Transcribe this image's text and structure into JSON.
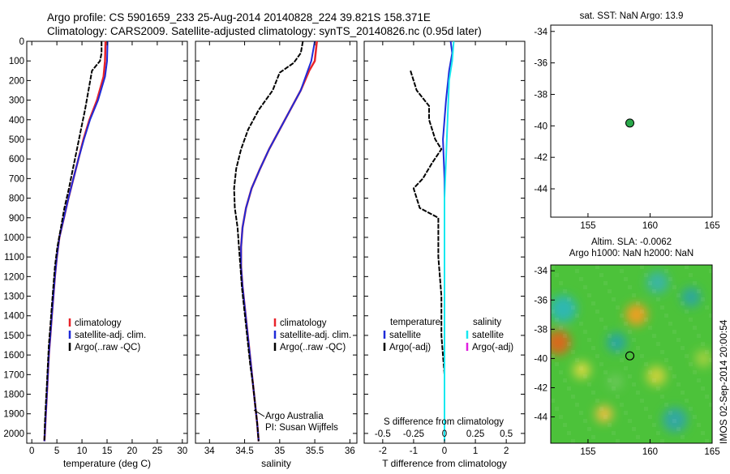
{
  "header": {
    "line1": "Argo profile: CS 5901659_233 25-Aug-2014 20140828_224 39.821S 158.371E",
    "line2": "Climatology: CARS2009. Satellite-adjusted climatology: synTS_20140826.nc (0.95d later)"
  },
  "side_label": "IMOS 02-Sep-2014 20:00:54",
  "colors": {
    "climatology": "#e8232a",
    "satellite": "#1f2bd8",
    "argo": "#000000",
    "sat_salinity": "#18e8f0",
    "argo_salinity_adj": "#e020e0"
  },
  "chart_data": [
    {
      "id": "temperature",
      "type": "line",
      "xlabel": "temperature (deg C)",
      "ylabel": "",
      "xlim": [
        -1,
        31
      ],
      "ylim": [
        2050,
        0
      ],
      "xticks": [
        "0",
        "5",
        "10",
        "15",
        "20",
        "25",
        "30"
      ],
      "xtick_values": [
        0,
        5,
        10,
        15,
        20,
        25,
        30
      ],
      "yticks": [
        "0",
        "100",
        "200",
        "300",
        "400",
        "500",
        "600",
        "700",
        "800",
        "900",
        "1000",
        "1100",
        "1200",
        "1300",
        "1400",
        "1500",
        "1600",
        "1700",
        "1800",
        "1900",
        "2000"
      ],
      "ytick_values": [
        0,
        100,
        200,
        300,
        400,
        500,
        600,
        700,
        800,
        900,
        1000,
        1100,
        1200,
        1300,
        1400,
        1500,
        1600,
        1700,
        1800,
        1900,
        2000
      ],
      "legend": [
        "climatology",
        "satellite-adj. clim.",
        "Argo(..raw -QC)"
      ],
      "series": [
        {
          "name": "climatology",
          "color": "red",
          "width": 2.5,
          "points": [
            [
              14.7,
              0
            ],
            [
              14.6,
              100
            ],
            [
              14.3,
              180
            ],
            [
              13.0,
              300
            ],
            [
              11.5,
              400
            ],
            [
              10.3,
              500
            ],
            [
              9.3,
              600
            ],
            [
              8.3,
              700
            ],
            [
              7.3,
              800
            ],
            [
              6.4,
              900
            ],
            [
              5.5,
              1000
            ],
            [
              5.0,
              1100
            ],
            [
              4.6,
              1200
            ],
            [
              4.3,
              1300
            ],
            [
              4.0,
              1400
            ],
            [
              3.7,
              1500
            ],
            [
              3.4,
              1600
            ],
            [
              3.2,
              1700
            ],
            [
              3.0,
              1800
            ],
            [
              2.8,
              1900
            ],
            [
              2.6,
              2000
            ],
            [
              2.5,
              2040
            ]
          ]
        },
        {
          "name": "satellite-adj. clim.",
          "color": "blue",
          "width": 2,
          "points": [
            [
              15.1,
              0
            ],
            [
              15.0,
              100
            ],
            [
              14.6,
              180
            ],
            [
              13.2,
              300
            ],
            [
              11.6,
              400
            ],
            [
              10.4,
              500
            ],
            [
              9.3,
              600
            ],
            [
              8.3,
              700
            ],
            [
              7.3,
              800
            ],
            [
              6.4,
              900
            ],
            [
              5.5,
              1000
            ],
            [
              5.0,
              1100
            ],
            [
              4.6,
              1200
            ],
            [
              4.3,
              1300
            ],
            [
              4.0,
              1400
            ],
            [
              3.7,
              1500
            ],
            [
              3.4,
              1600
            ],
            [
              3.2,
              1700
            ],
            [
              3.0,
              1800
            ],
            [
              2.8,
              1900
            ],
            [
              2.6,
              2000
            ],
            [
              2.5,
              2040
            ]
          ]
        },
        {
          "name": "Argo(..raw -QC)",
          "color": "black",
          "width": 2,
          "points": [
            [
              13.9,
              0
            ],
            [
              13.9,
              60
            ],
            [
              13.6,
              100
            ],
            [
              12.0,
              150
            ],
            [
              11.3,
              250
            ],
            [
              10.6,
              350
            ],
            [
              9.8,
              450
            ],
            [
              9.0,
              550
            ],
            [
              8.2,
              650
            ],
            [
              7.4,
              750
            ],
            [
              6.5,
              850
            ],
            [
              5.8,
              950
            ],
            [
              5.1,
              1050
            ],
            [
              4.6,
              1150
            ],
            [
              4.3,
              1250
            ],
            [
              4.0,
              1350
            ],
            [
              3.7,
              1450
            ],
            [
              3.4,
              1550
            ],
            [
              3.2,
              1650
            ],
            [
              3.0,
              1750
            ],
            [
              2.8,
              1850
            ],
            [
              2.6,
              1950
            ],
            [
              2.5,
              2040
            ]
          ]
        }
      ]
    },
    {
      "id": "salinity",
      "type": "line",
      "xlabel": "salinity",
      "xlim": [
        33.8,
        36.1
      ],
      "ylim": [
        2050,
        0
      ],
      "xticks": [
        "34",
        "34.5",
        "35",
        "35.5",
        "36"
      ],
      "xtick_values": [
        34,
        34.5,
        35,
        35.5,
        36
      ],
      "legend": [
        "climatology",
        "satellite-adj. clim.",
        "Argo(..raw -QC)"
      ],
      "annotation_lines": [
        "Argo Australia",
        "PI: Susan Wijffels"
      ],
      "series": [
        {
          "name": "climatology",
          "color": "red",
          "width": 2.5,
          "points": [
            [
              35.53,
              0
            ],
            [
              35.5,
              100
            ],
            [
              35.42,
              150
            ],
            [
              35.3,
              250
            ],
            [
              35.15,
              350
            ],
            [
              35.0,
              450
            ],
            [
              34.85,
              550
            ],
            [
              34.72,
              650
            ],
            [
              34.6,
              750
            ],
            [
              34.52,
              850
            ],
            [
              34.47,
              950
            ],
            [
              34.45,
              1050
            ],
            [
              34.45,
              1150
            ],
            [
              34.47,
              1250
            ],
            [
              34.5,
              1350
            ],
            [
              34.53,
              1450
            ],
            [
              34.56,
              1550
            ],
            [
              34.59,
              1650
            ],
            [
              34.62,
              1750
            ],
            [
              34.65,
              1850
            ],
            [
              34.68,
              1950
            ],
            [
              34.7,
              2040
            ]
          ]
        },
        {
          "name": "satellite-adj. clim.",
          "color": "blue",
          "width": 2,
          "points": [
            [
              35.5,
              0
            ],
            [
              35.45,
              100
            ],
            [
              35.4,
              150
            ],
            [
              35.3,
              250
            ],
            [
              35.15,
              350
            ],
            [
              35.0,
              450
            ],
            [
              34.85,
              550
            ],
            [
              34.72,
              650
            ],
            [
              34.6,
              750
            ],
            [
              34.52,
              850
            ],
            [
              34.47,
              950
            ],
            [
              34.45,
              1050
            ],
            [
              34.45,
              1150
            ],
            [
              34.47,
              1250
            ],
            [
              34.5,
              1350
            ],
            [
              34.53,
              1450
            ],
            [
              34.56,
              1550
            ],
            [
              34.59,
              1650
            ],
            [
              34.62,
              1750
            ],
            [
              34.65,
              1850
            ],
            [
              34.68,
              1950
            ],
            [
              34.7,
              2040
            ]
          ]
        },
        {
          "name": "Argo(..raw -QC)",
          "color": "black",
          "width": 2,
          "points": [
            [
              35.33,
              0
            ],
            [
              35.3,
              60
            ],
            [
              35.2,
              110
            ],
            [
              35.0,
              160
            ],
            [
              34.9,
              250
            ],
            [
              34.7,
              350
            ],
            [
              34.55,
              450
            ],
            [
              34.45,
              550
            ],
            [
              34.38,
              650
            ],
            [
              34.35,
              750
            ],
            [
              34.36,
              850
            ],
            [
              34.4,
              950
            ],
            [
              34.42,
              1050
            ],
            [
              34.44,
              1150
            ],
            [
              34.46,
              1250
            ],
            [
              34.49,
              1350
            ],
            [
              34.52,
              1450
            ],
            [
              34.55,
              1550
            ],
            [
              34.58,
              1650
            ],
            [
              34.62,
              1750
            ],
            [
              34.65,
              1850
            ],
            [
              34.68,
              1950
            ],
            [
              34.7,
              2040
            ]
          ]
        }
      ]
    },
    {
      "id": "difference",
      "type": "line",
      "xlabel": "T difference from climatology",
      "toplabel": "S difference from climatology",
      "xlim": [
        -2.6,
        2.6
      ],
      "ylim": [
        2050,
        0
      ],
      "xticks": [
        "-2",
        "-1",
        "0",
        "1",
        "2"
      ],
      "xtick_values": [
        -2,
        -1,
        0,
        1,
        2
      ],
      "s_xticks": [
        "-0.5",
        "-0.25",
        "0",
        "0.25",
        "0.5"
      ],
      "s_xtick_values": [
        -0.5,
        -0.25,
        0,
        0.25,
        0.5
      ],
      "legend_left_title": "temperature",
      "legend_right_title": "salinity",
      "legend_left": [
        "satellite",
        "Argo(-adj)"
      ],
      "legend_right": [
        "satellite",
        "Argo(-adj)"
      ],
      "series": [
        {
          "name": "T satellite",
          "color": "blue",
          "width": 2,
          "points": [
            [
              0.2,
              0
            ],
            [
              0.25,
              60
            ],
            [
              0.15,
              150
            ],
            [
              0.05,
              300
            ],
            [
              -0.05,
              500
            ],
            [
              0,
              700
            ],
            [
              0,
              900
            ],
            [
              0,
              1100
            ],
            [
              0,
              1300
            ],
            [
              0,
              1500
            ],
            [
              0,
              1700
            ],
            [
              0,
              1900
            ],
            [
              0,
              2040
            ]
          ]
        },
        {
          "name": "T Argo(-adj)",
          "color": "black",
          "width": 2,
          "points": [
            [
              -1.1,
              150
            ],
            [
              -0.9,
              250
            ],
            [
              -0.5,
              330
            ],
            [
              -0.5,
              400
            ],
            [
              -0.3,
              500
            ],
            [
              -0.1,
              550
            ],
            [
              -0.4,
              620
            ],
            [
              -0.7,
              700
            ],
            [
              -1.0,
              750
            ],
            [
              -0.8,
              850
            ],
            [
              -0.2,
              900
            ],
            [
              -0.2,
              1100
            ],
            [
              -0.1,
              1300
            ],
            [
              -0.1,
              1500
            ],
            [
              0,
              1700
            ],
            [
              0,
              1900
            ],
            [
              0,
              2040
            ]
          ]
        },
        {
          "name": "S satellite",
          "color": "cyan",
          "width": 2,
          "points": [
            [
              0.3,
              0
            ],
            [
              0.25,
              100
            ],
            [
              0.15,
              200
            ],
            [
              0.1,
              400
            ],
            [
              0.05,
              600
            ],
            [
              0,
              800
            ],
            [
              0,
              1000
            ],
            [
              0,
              1200
            ],
            [
              0,
              1400
            ],
            [
              0,
              1600
            ],
            [
              0,
              1800
            ],
            [
              0,
              2040
            ]
          ]
        }
      ]
    },
    {
      "id": "sst_map",
      "type": "scatter",
      "title": "sat. SST: NaN Argo: 13.9",
      "xlim": [
        152,
        165
      ],
      "ylim": [
        -45.8,
        -33.6
      ],
      "xticks": [
        "155",
        "160",
        "165"
      ],
      "xtick_values": [
        155,
        160,
        165
      ],
      "yticks": [
        "-34",
        "-36",
        "-38",
        "-40",
        "-42",
        "-44"
      ],
      "ytick_values": [
        -34,
        -36,
        -38,
        -40,
        -42,
        -44
      ],
      "points": [
        [
          158.37,
          -39.82
        ]
      ]
    },
    {
      "id": "altim_map",
      "type": "heatmap",
      "title_line1": "Altim. SLA: -0.0062",
      "title_line2": "Argo h1000: NaN h2000: NaN",
      "xlim": [
        152,
        165
      ],
      "ylim": [
        -45.8,
        -33.6
      ],
      "xticks": [
        "155",
        "160",
        "165"
      ],
      "xtick_values": [
        155,
        160,
        165
      ],
      "yticks": [
        "-34",
        "-36",
        "-38",
        "-40",
        "-42",
        "-44"
      ],
      "ytick_values": [
        -34,
        -36,
        -38,
        -40,
        -42,
        -44
      ],
      "points": [
        [
          158.37,
          -39.82
        ]
      ],
      "blobs": [
        {
          "lon": 153.0,
          "lat": -36.6,
          "r": 1.1,
          "color": "#2fb8b0"
        },
        {
          "lon": 152.6,
          "lat": -38.9,
          "r": 1.0,
          "color": "#d66a1a"
        },
        {
          "lon": 158.9,
          "lat": -37.0,
          "r": 0.9,
          "color": "#e8a020"
        },
        {
          "lon": 157.3,
          "lat": -38.9,
          "r": 0.8,
          "color": "#2aa79c"
        },
        {
          "lon": 160.6,
          "lat": -34.8,
          "r": 0.9,
          "color": "#3bb6a0"
        },
        {
          "lon": 163.3,
          "lat": -35.8,
          "r": 0.8,
          "color": "#2fa89a"
        },
        {
          "lon": 162.0,
          "lat": -44.2,
          "r": 1.0,
          "color": "#32a8a0"
        },
        {
          "lon": 156.3,
          "lat": -43.8,
          "r": 0.7,
          "color": "#e8c040"
        },
        {
          "lon": 160.5,
          "lat": -41.2,
          "r": 0.8,
          "color": "#c8d23a"
        },
        {
          "lon": 154.5,
          "lat": -40.8,
          "r": 0.7,
          "color": "#d2d840"
        },
        {
          "lon": 164.3,
          "lat": -40.0,
          "r": 0.7,
          "color": "#9fd040"
        },
        {
          "lon": 157.2,
          "lat": -41.6,
          "r": 0.6,
          "color": "#6cc85a"
        }
      ]
    }
  ]
}
